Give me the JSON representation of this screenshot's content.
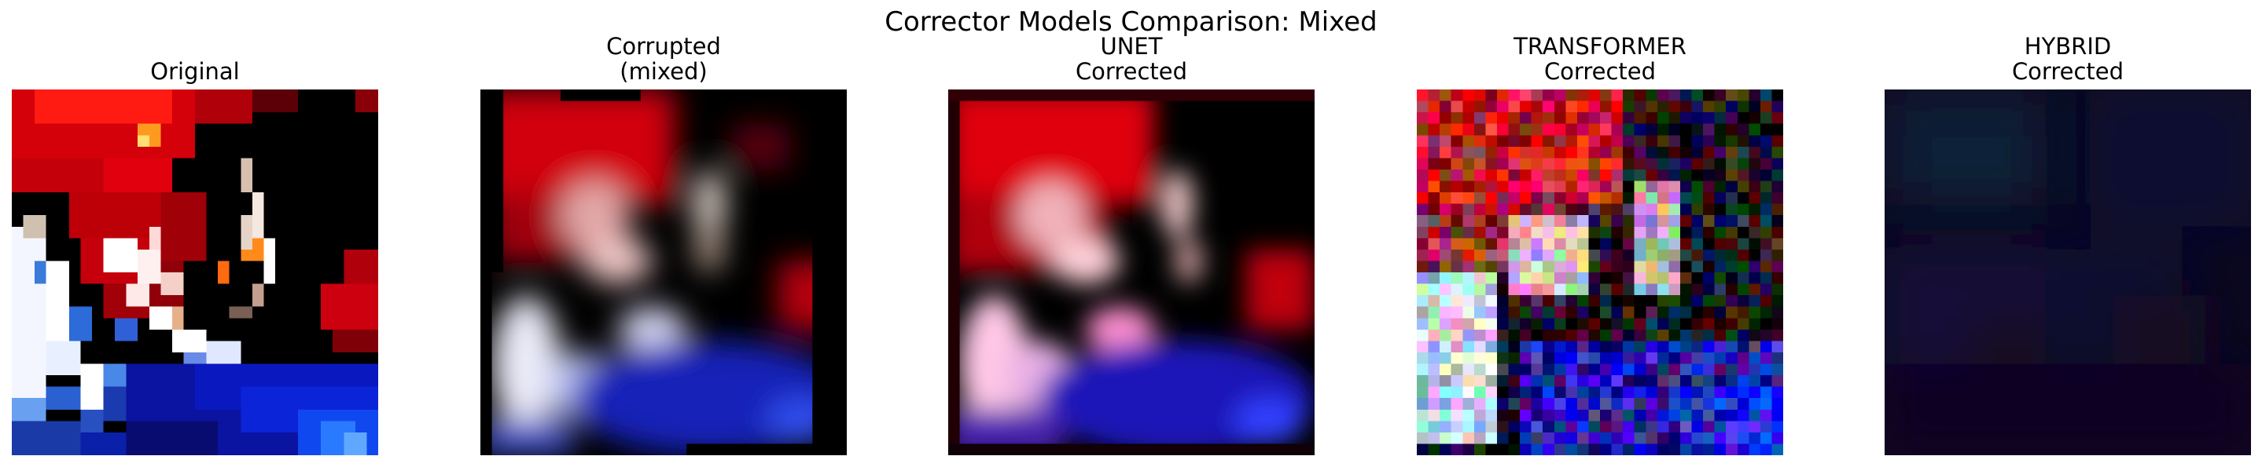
{
  "figure": {
    "title": "Corrector Models Comparison: Mixed"
  },
  "panels": [
    {
      "title_lines": [
        "Original"
      ]
    },
    {
      "title_lines": [
        "Corrupted",
        "(mixed)"
      ]
    },
    {
      "title_lines": [
        "UNET",
        "Corrected"
      ]
    },
    {
      "title_lines": [
        "TRANSFORMER",
        "Corrected"
      ]
    },
    {
      "title_lines": [
        "HYBRID",
        "Corrected"
      ]
    }
  ]
}
